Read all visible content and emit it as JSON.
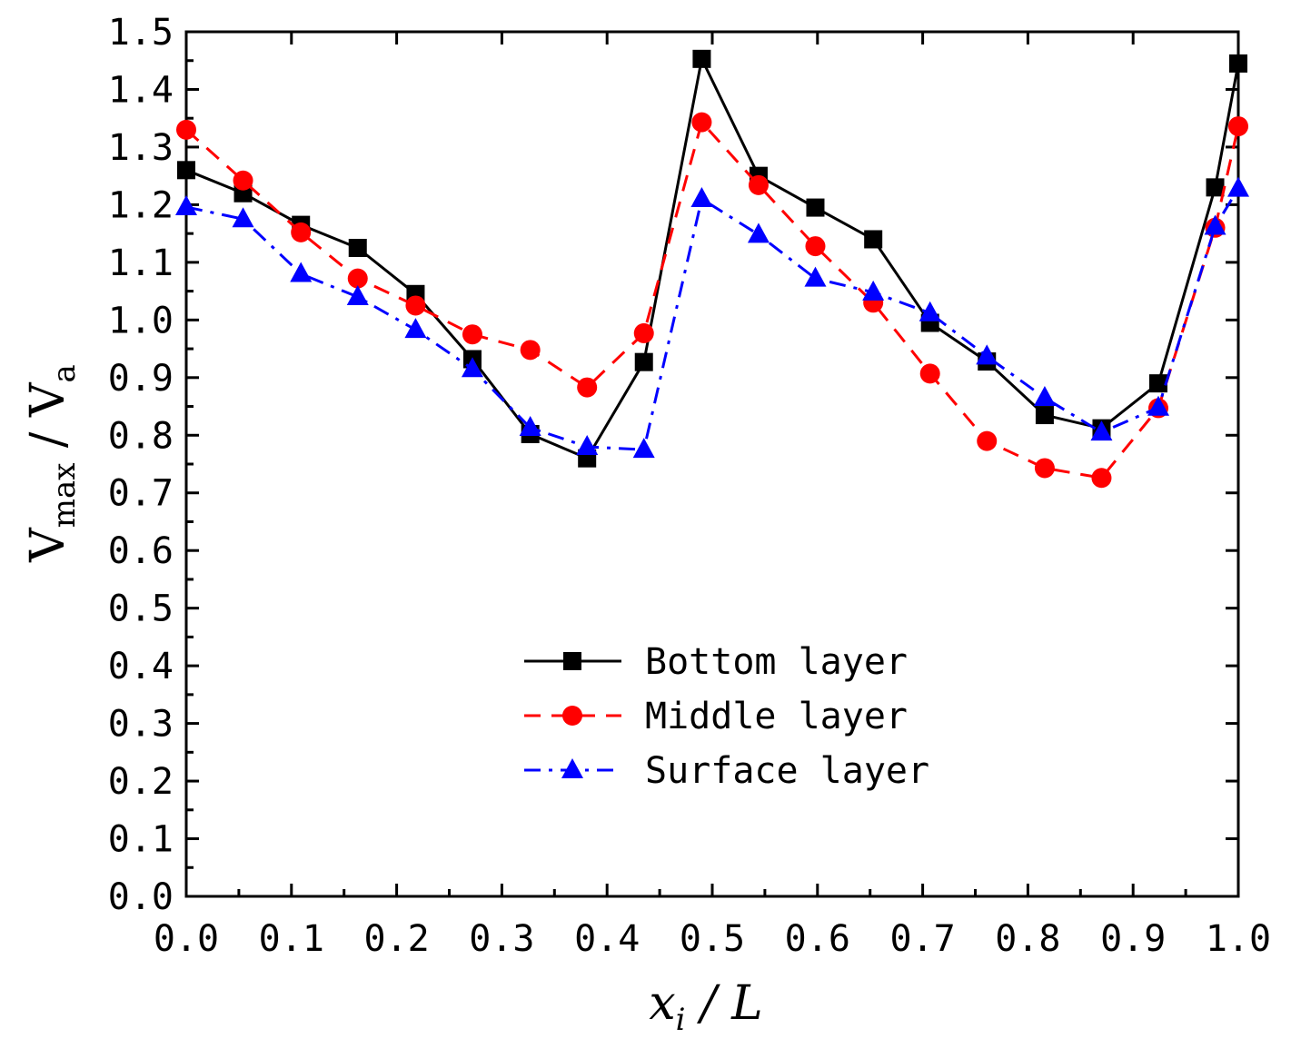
{
  "chart_data": {
    "type": "line",
    "title": "",
    "xlabel": {
      "main": "x",
      "sub": "i",
      "rest": " / L"
    },
    "ylabel": {
      "main1": "V",
      "sub1": "max",
      "mid": " / V",
      "sub2": "a"
    },
    "xlim": [
      0.0,
      1.0
    ],
    "ylim": [
      0.0,
      1.5
    ],
    "xticks": [
      "0.0",
      "0.1",
      "0.2",
      "0.3",
      "0.4",
      "0.5",
      "0.6",
      "0.7",
      "0.8",
      "0.9",
      "1.0"
    ],
    "yticks": [
      "0.0",
      "0.1",
      "0.2",
      "0.3",
      "0.4",
      "0.5",
      "0.6",
      "0.7",
      "0.8",
      "0.9",
      "1.0",
      "1.1",
      "1.2",
      "1.3",
      "1.4",
      "1.5"
    ],
    "grid": false,
    "legend_position": "center",
    "x": [
      0.0,
      0.054,
      0.109,
      0.163,
      0.218,
      0.272,
      0.327,
      0.381,
      0.435,
      0.49,
      0.544,
      0.598,
      0.653,
      0.707,
      0.761,
      0.816,
      0.87,
      0.924,
      0.978,
      1.0
    ],
    "series": [
      {
        "name": "Bottom layer",
        "color": "#000000",
        "marker": "square",
        "dash": "solid",
        "values": [
          1.26,
          1.22,
          1.165,
          1.125,
          1.045,
          0.932,
          0.802,
          0.76,
          0.927,
          1.453,
          1.25,
          1.195,
          1.14,
          0.995,
          0.928,
          0.835,
          0.812,
          0.89,
          1.23,
          1.445
        ]
      },
      {
        "name": "Middle layer",
        "color": "#ff0000",
        "marker": "circle",
        "dash": "dash",
        "values": [
          1.33,
          1.242,
          1.152,
          1.072,
          1.025,
          0.975,
          0.948,
          0.883,
          0.977,
          1.343,
          1.234,
          1.128,
          1.03,
          0.907,
          0.79,
          0.743,
          0.726,
          0.847,
          1.16,
          1.336
        ]
      },
      {
        "name": "Surface layer",
        "color": "#0000ff",
        "marker": "triangle",
        "dash": "dashdot",
        "values": [
          1.196,
          1.175,
          1.08,
          1.04,
          0.983,
          0.915,
          0.813,
          0.78,
          0.775,
          1.21,
          1.148,
          1.072,
          1.048,
          1.012,
          0.937,
          0.865,
          0.805,
          0.848,
          1.162,
          1.228
        ]
      }
    ]
  }
}
